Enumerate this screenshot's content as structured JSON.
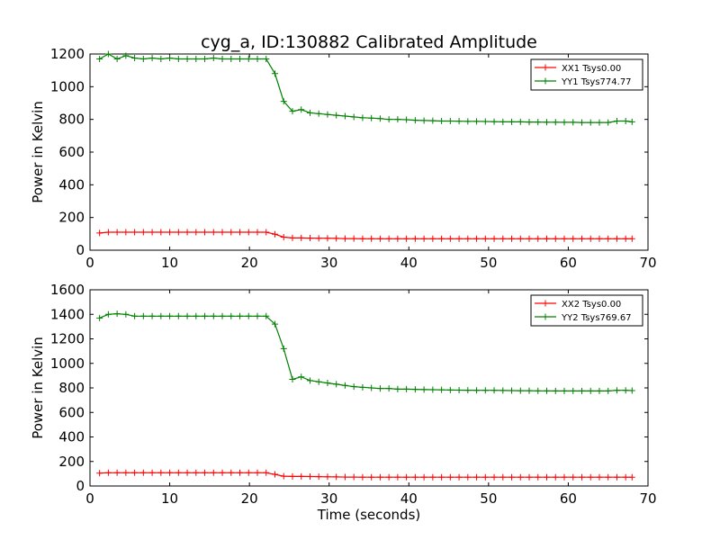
{
  "chart_data": [
    {
      "type": "line",
      "title": "cyg_a, ID:130882 Calibrated Amplitude",
      "xlabel": "",
      "ylabel": "Power in Kelvin",
      "xlim": [
        0,
        70
      ],
      "ylim": [
        0,
        1200
      ],
      "xticks": [
        "0",
        "10",
        "20",
        "30",
        "40",
        "50",
        "60",
        "70"
      ],
      "yticks": [
        "0",
        "200",
        "400",
        "600",
        "800",
        "1000",
        "1200"
      ],
      "grid": false,
      "legend_position": "top-right",
      "x": [
        1.2,
        2.3,
        3.4,
        4.5,
        5.6,
        6.7,
        7.8,
        8.9,
        10.0,
        11.1,
        12.2,
        13.3,
        14.4,
        15.5,
        16.6,
        17.7,
        18.8,
        19.9,
        21.0,
        22.1,
        23.2,
        24.3,
        25.4,
        26.5,
        27.6,
        28.7,
        29.8,
        30.9,
        32.0,
        33.1,
        34.2,
        35.3,
        36.4,
        37.5,
        38.6,
        39.7,
        40.8,
        41.9,
        43.0,
        44.1,
        45.2,
        46.3,
        47.4,
        48.5,
        49.6,
        50.7,
        51.8,
        52.9,
        54.0,
        55.1,
        56.2,
        57.3,
        58.4,
        59.5,
        60.6,
        61.7,
        62.8,
        63.9,
        65.0,
        66.1,
        67.2,
        68.0
      ],
      "series": [
        {
          "name": "XX1 Tsys0.00",
          "color": "#ff0000",
          "values": [
            105,
            110,
            110,
            110,
            110,
            110,
            110,
            110,
            110,
            110,
            110,
            110,
            110,
            110,
            110,
            110,
            110,
            110,
            110,
            110,
            98,
            80,
            75,
            75,
            74,
            73,
            73,
            72,
            71,
            71,
            70,
            70,
            70,
            70,
            70,
            70,
            70,
            70,
            70,
            70,
            70,
            70,
            70,
            70,
            70,
            70,
            70,
            70,
            70,
            70,
            70,
            70,
            70,
            70,
            70,
            70,
            70,
            70,
            70,
            70,
            70,
            70
          ]
        },
        {
          "name": "YY1 Tsys774.77",
          "color": "#008000",
          "values": [
            1170,
            1200,
            1170,
            1190,
            1175,
            1170,
            1175,
            1170,
            1175,
            1170,
            1170,
            1170,
            1170,
            1175,
            1170,
            1170,
            1170,
            1170,
            1170,
            1170,
            1080,
            910,
            850,
            860,
            840,
            835,
            830,
            825,
            820,
            815,
            810,
            808,
            805,
            800,
            800,
            798,
            795,
            793,
            792,
            790,
            790,
            789,
            788,
            788,
            787,
            786,
            785,
            785,
            785,
            784,
            784,
            783,
            783,
            782,
            782,
            781,
            781,
            781,
            781,
            790,
            790,
            785
          ]
        }
      ]
    },
    {
      "type": "line",
      "title": "",
      "xlabel": "Time (seconds)",
      "ylabel": "Power in Kelvin",
      "xlim": [
        0,
        70
      ],
      "ylim": [
        0,
        1600
      ],
      "xticks": [
        "0",
        "10",
        "20",
        "30",
        "40",
        "50",
        "60",
        "70"
      ],
      "yticks": [
        "0",
        "200",
        "400",
        "600",
        "800",
        "1000",
        "1200",
        "1400",
        "1600"
      ],
      "grid": false,
      "legend_position": "top-right",
      "x": [
        1.2,
        2.3,
        3.4,
        4.5,
        5.6,
        6.7,
        7.8,
        8.9,
        10.0,
        11.1,
        12.2,
        13.3,
        14.4,
        15.5,
        16.6,
        17.7,
        18.8,
        19.9,
        21.0,
        22.1,
        23.2,
        24.3,
        25.4,
        26.5,
        27.6,
        28.7,
        29.8,
        30.9,
        32.0,
        33.1,
        34.2,
        35.3,
        36.4,
        37.5,
        38.6,
        39.7,
        40.8,
        41.9,
        43.0,
        44.1,
        45.2,
        46.3,
        47.4,
        48.5,
        49.6,
        50.7,
        51.8,
        52.9,
        54.0,
        55.1,
        56.2,
        57.3,
        58.4,
        59.5,
        60.6,
        61.7,
        62.8,
        63.9,
        65.0,
        66.1,
        67.2,
        68.0
      ],
      "series": [
        {
          "name": "XX2 Tsys0.00",
          "color": "#ff0000",
          "values": [
            105,
            108,
            108,
            108,
            108,
            108,
            108,
            108,
            108,
            108,
            108,
            108,
            108,
            108,
            108,
            108,
            108,
            108,
            108,
            108,
            95,
            80,
            78,
            78,
            77,
            76,
            75,
            74,
            73,
            73,
            72,
            72,
            72,
            72,
            72,
            72,
            72,
            72,
            72,
            72,
            72,
            72,
            72,
            72,
            72,
            72,
            72,
            72,
            72,
            72,
            72,
            72,
            72,
            72,
            72,
            72,
            72,
            72,
            72,
            72,
            72,
            72
          ]
        },
        {
          "name": "YY2 Tsys769.67",
          "color": "#008000",
          "values": [
            1370,
            1400,
            1405,
            1400,
            1385,
            1385,
            1385,
            1385,
            1385,
            1385,
            1385,
            1385,
            1385,
            1385,
            1385,
            1385,
            1385,
            1385,
            1385,
            1385,
            1320,
            1120,
            870,
            890,
            860,
            850,
            840,
            830,
            820,
            810,
            805,
            800,
            795,
            795,
            790,
            790,
            788,
            786,
            785,
            784,
            783,
            782,
            781,
            780,
            780,
            780,
            779,
            778,
            777,
            777,
            776,
            776,
            775,
            775,
            775,
            775,
            775,
            775,
            775,
            780,
            780,
            778
          ]
        }
      ]
    }
  ]
}
